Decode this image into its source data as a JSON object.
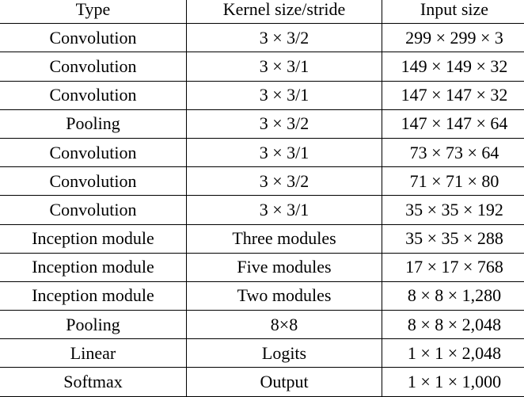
{
  "table": {
    "headers": [
      "Type",
      "Kernel size/stride",
      "Input size"
    ],
    "rows": [
      [
        "Convolution",
        "3 × 3/2",
        "299 × 299 × 3"
      ],
      [
        "Convolution",
        "3 × 3/1",
        "149 × 149 × 32"
      ],
      [
        "Convolution",
        "3 × 3/1",
        "147 × 147 × 32"
      ],
      [
        "Pooling",
        "3 × 3/2",
        "147 × 147 × 64"
      ],
      [
        "Convolution",
        "3 × 3/1",
        "73 × 73 × 64"
      ],
      [
        "Convolution",
        "3 × 3/2",
        "71 × 71 × 80"
      ],
      [
        "Convolution",
        "3 × 3/1",
        "35 × 35 × 192"
      ],
      [
        "Inception module",
        "Three modules",
        "35 × 35 × 288"
      ],
      [
        "Inception module",
        "Five modules",
        "17 × 17 × 768"
      ],
      [
        "Inception module",
        "Two modules",
        "8 × 8 × 1,280"
      ],
      [
        "Pooling",
        "8×8",
        "8 × 8 × 2,048"
      ],
      [
        "Linear",
        "Logits",
        "1 × 1 × 2,048"
      ],
      [
        "Softmax",
        "Output",
        "1 × 1 × 1,000"
      ]
    ]
  }
}
